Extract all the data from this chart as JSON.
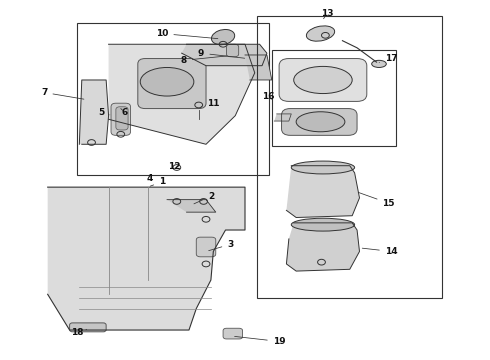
{
  "bg_color": "#ffffff",
  "line_color": "#333333",
  "part_fill": "#d8d8d8",
  "part_fill2": "#c8c8c8",
  "part_fill3": "#e0e0e0"
}
